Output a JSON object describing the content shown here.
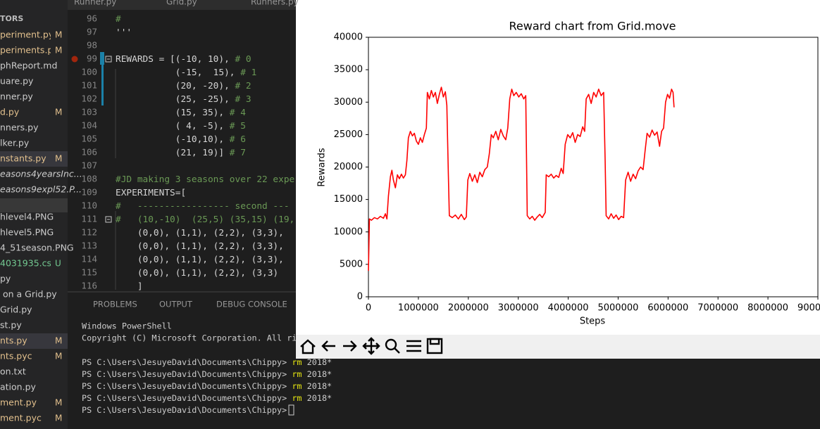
{
  "tabs": [
    "Runner.py",
    "Grid.py",
    "Runners.py"
  ],
  "sidebar": {
    "header": "TORS",
    "items": [
      {
        "name": "periment.py",
        "status": "M"
      },
      {
        "name": "periments.p..",
        "status": "M"
      },
      {
        "name": "phReport.md"
      },
      {
        "name": "uare.py"
      },
      {
        "name": "nner.py"
      },
      {
        "name": "d.py",
        "status": "M"
      },
      {
        "name": "nners.py"
      },
      {
        "name": "lker.py"
      },
      {
        "name": "nstants.py",
        "status": "M",
        "selected": true
      },
      {
        "name": "easons4yearsInc...",
        "italic": true
      },
      {
        "name": "easons9expl52.P...",
        "italic": true
      },
      {
        "name": "hlevel4.PNG"
      },
      {
        "name": "hlevel5.PNG"
      },
      {
        "name": "4_51season.PNG"
      },
      {
        "name": "4031935.csv",
        "status": "U"
      },
      {
        "name": "py"
      },
      {
        "name": " on a Grid.py"
      },
      {
        "name": "Grid.py"
      },
      {
        "name": "st.py"
      },
      {
        "name": "nts.py",
        "status": "M",
        "selected": true
      },
      {
        "name": "nts.pyc",
        "status": "M"
      },
      {
        "name": "on.txt"
      },
      {
        "name": "ation.py"
      },
      {
        "name": "ment.py",
        "status": "M"
      },
      {
        "name": "ment.pyc",
        "status": "M"
      }
    ]
  },
  "editor": {
    "lines": [
      {
        "number": 96,
        "comment": "#"
      },
      {
        "number": 97,
        "code": "'''"
      },
      {
        "number": 98
      },
      {
        "number": 99,
        "code": "REWARDS = [(-10, 10), ",
        "comment": "# 0"
      },
      {
        "number": 100,
        "code": "           (-15,  15), ",
        "comment": "# 1"
      },
      {
        "number": 101,
        "code": "           (20, -20), ",
        "comment": "# 2"
      },
      {
        "number": 102,
        "code": "           (25, -25), ",
        "comment": "# 3"
      },
      {
        "number": 103,
        "code": "           (15, 35), ",
        "comment": "# 4"
      },
      {
        "number": 104,
        "code": "           ( 4, -5), ",
        "comment": "# 5"
      },
      {
        "number": 105,
        "code": "           (-10,10), ",
        "comment": "# 6"
      },
      {
        "number": 106,
        "code": "           (21, 19)] ",
        "comment": "# 7"
      },
      {
        "number": 107
      },
      {
        "number": 108,
        "comment": "#JD making 3 seasons over 22 exper"
      },
      {
        "number": 109,
        "code": "EXPERIMENTS=["
      },
      {
        "number": 110,
        "comment": "#   ----------------- second ---"
      },
      {
        "number": 111,
        "comment": "#   (10,-10)  (25,5) (35,15) (19,"
      },
      {
        "number": 112,
        "code": "    (0,0), (1,1), (2,2), (3,3),"
      },
      {
        "number": 113,
        "code": "    (0,0), (1,1), (2,2), (3,3),"
      },
      {
        "number": 114,
        "code": "    (0,0), (1,1), (2,2), (3,3),"
      },
      {
        "number": 115,
        "code": "    (0,0), (1,1), (2,2), (3,3)"
      },
      {
        "number": 116,
        "code": "    ]"
      }
    ]
  },
  "panel": {
    "tabs": [
      "PROBLEMS",
      "OUTPUT",
      "DEBUG CONSOLE"
    ],
    "terminal": {
      "header": [
        "Windows PowerShell",
        "Copyright (C) Microsoft Corporation. All ri"
      ],
      "commands": [
        {
          "prompt": "PS C:\\Users\\JesuyeDavid\\Documents\\Chippy>",
          "command": "rm",
          "args": "2018*"
        },
        {
          "prompt": "PS C:\\Users\\JesuyeDavid\\Documents\\Chippy>",
          "command": "rm",
          "args": "2018*"
        },
        {
          "prompt": "PS C:\\Users\\JesuyeDavid\\Documents\\Chippy>",
          "command": "rm",
          "args": "2018*"
        },
        {
          "prompt": "PS C:\\Users\\JesuyeDavid\\Documents\\Chippy>",
          "command": "rm",
          "args": "2018*"
        },
        {
          "prompt": "PS C:\\Users\\JesuyeDavid\\Documents\\Chippy>"
        }
      ]
    }
  },
  "chart_data": {
    "type": "line",
    "title": "Reward chart from Grid.move",
    "x_label": "Steps",
    "y_label": "Rewards",
    "xlim": [
      0,
      9000000
    ],
    "ylim": [
      0,
      40000
    ],
    "xticks": [
      0,
      1000000,
      2000000,
      3000000,
      4000000,
      5000000,
      6000000,
      7000000,
      8000000,
      9000000
    ],
    "yticks": [
      0,
      5000,
      10000,
      15000,
      20000,
      25000,
      30000,
      35000,
      40000
    ],
    "color": "#ff0000",
    "x": [
      0,
      20000,
      60000,
      120000,
      180000,
      240000,
      300000,
      340000,
      370000,
      400000,
      440000,
      470000,
      500000,
      540000,
      580000,
      620000,
      660000,
      700000,
      740000,
      770000,
      800000,
      840000,
      880000,
      920000,
      960000,
      1000000,
      1040000,
      1080000,
      1120000,
      1160000,
      1180000,
      1220000,
      1260000,
      1300000,
      1340000,
      1380000,
      1420000,
      1460000,
      1500000,
      1540000,
      1570000,
      1600000,
      1620000,
      1680000,
      1740000,
      1800000,
      1860000,
      1920000,
      1960000,
      1990000,
      2030000,
      2080000,
      2130000,
      2180000,
      2230000,
      2280000,
      2330000,
      2380000,
      2420000,
      2460000,
      2500000,
      2550000,
      2600000,
      2650000,
      2700000,
      2750000,
      2790000,
      2830000,
      2870000,
      2910000,
      2960000,
      3010000,
      3060000,
      3110000,
      3150000,
      3180000,
      3230000,
      3280000,
      3330000,
      3380000,
      3430000,
      3480000,
      3540000,
      3560000,
      3610000,
      3660000,
      3710000,
      3760000,
      3810000,
      3860000,
      3900000,
      3940000,
      3990000,
      4040000,
      4090000,
      4140000,
      4190000,
      4240000,
      4290000,
      4330000,
      4360000,
      4410000,
      4460000,
      4510000,
      4560000,
      4610000,
      4660000,
      4710000,
      4740000,
      4760000,
      4810000,
      4860000,
      4910000,
      4960000,
      5010000,
      5060000,
      5110000,
      5150000,
      5200000,
      5250000,
      5300000,
      5350000,
      5400000,
      5450000,
      5500000,
      5540000,
      5580000,
      5630000,
      5680000,
      5730000,
      5780000,
      5830000,
      5870000,
      5910000,
      5950000,
      5990000,
      6030000,
      6070000,
      6100000,
      6120000
    ],
    "values": [
      4000,
      12000,
      11800,
      12200,
      12000,
      12400,
      12100,
      12800,
      12000,
      15500,
      18500,
      19500,
      18000,
      16800,
      18800,
      18200,
      18900,
      18300,
      18800,
      21000,
      24500,
      25500,
      24800,
      25200,
      24000,
      23500,
      24500,
      23800,
      25000,
      26000,
      31500,
      30500,
      31800,
      30800,
      31500,
      29800,
      31200,
      32300,
      30800,
      31600,
      29500,
      19000,
      12500,
      12200,
      12600,
      12000,
      12700,
      11900,
      12300,
      18000,
      19000,
      17800,
      18800,
      17600,
      19200,
      18500,
      19600,
      20000,
      22000,
      25000,
      24500,
      25500,
      24200,
      25800,
      24800,
      24200,
      26000,
      30500,
      32000,
      31000,
      31500,
      30800,
      31300,
      30500,
      31000,
      12500,
      12000,
      12400,
      11800,
      12300,
      12700,
      12200,
      13000,
      18800,
      18500,
      18900,
      18300,
      18700,
      18400,
      19800,
      19000,
      23500,
      25000,
      24500,
      25300,
      23800,
      25000,
      24700,
      26200,
      25500,
      30500,
      31200,
      29800,
      31500,
      30800,
      32000,
      31000,
      31500,
      21000,
      12500,
      12000,
      12800,
      12100,
      12600,
      11900,
      12400,
      12200,
      18000,
      19200,
      17800,
      18900,
      18200,
      19400,
      20000,
      19600,
      22500,
      25200,
      24600,
      25700,
      24900,
      25400,
      23200,
      25500,
      26000,
      30000,
      31200,
      30600,
      32000,
      31500,
      29200
    ]
  }
}
